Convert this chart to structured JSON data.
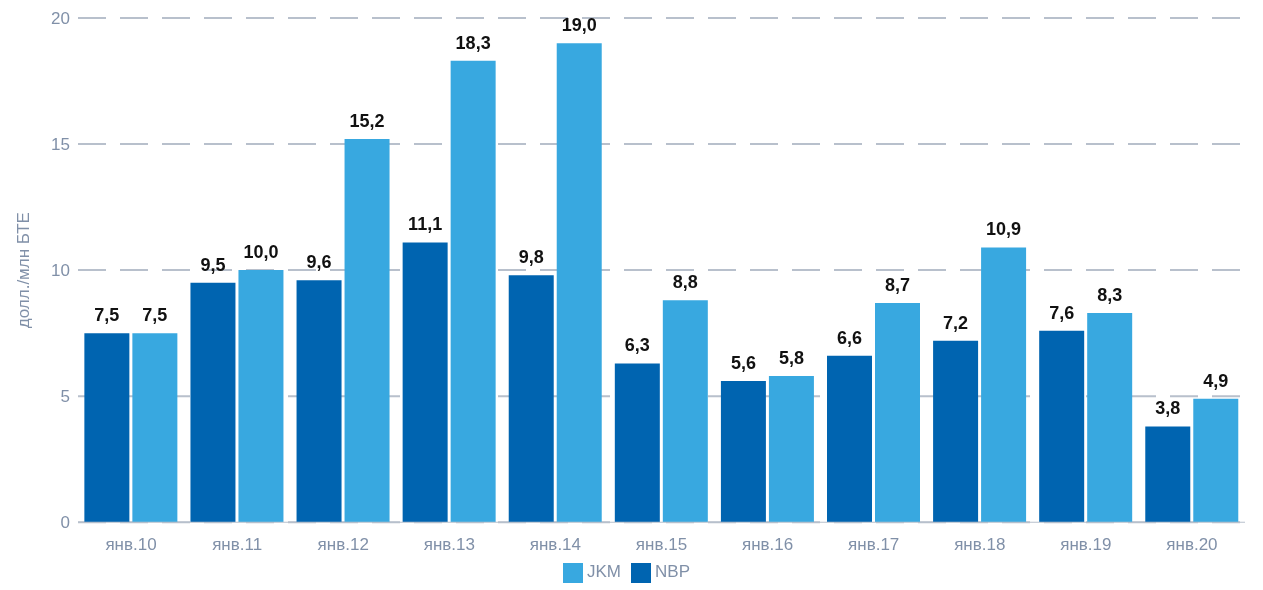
{
  "chart_data": {
    "type": "bar",
    "ylabel": "долл./млн БТЕ",
    "categories": [
      "янв.10",
      "янв.11",
      "янв.12",
      "янв.13",
      "янв.14",
      "янв.15",
      "янв.16",
      "янв.17",
      "янв.18",
      "янв.19",
      "янв.20"
    ],
    "series": [
      {
        "name": "NBP",
        "color": "#0064b0",
        "values": [
          7.5,
          9.5,
          9.6,
          11.1,
          9.8,
          6.3,
          5.6,
          6.6,
          7.2,
          7.6,
          3.8
        ],
        "value_labels": [
          "7,5",
          "9,5",
          "9,6",
          "11,1",
          "9,8",
          "6,3",
          "5,6",
          "6,6",
          "7,2",
          "7,6",
          "3,8"
        ]
      },
      {
        "name": "JKM",
        "color": "#38a8e0",
        "values": [
          7.5,
          10.0,
          15.2,
          18.3,
          19.0,
          8.8,
          5.8,
          8.7,
          10.9,
          8.3,
          4.9
        ],
        "value_labels": [
          "7,5",
          "10,0",
          "15,2",
          "18,3",
          "19,0",
          "8,8",
          "5,8",
          "8,7",
          "10,9",
          "8,3",
          "4,9"
        ]
      }
    ],
    "ylim": [
      0,
      20
    ],
    "yticks": [
      0,
      5,
      10,
      15,
      20
    ],
    "grid": "y",
    "legend": "bottom"
  }
}
